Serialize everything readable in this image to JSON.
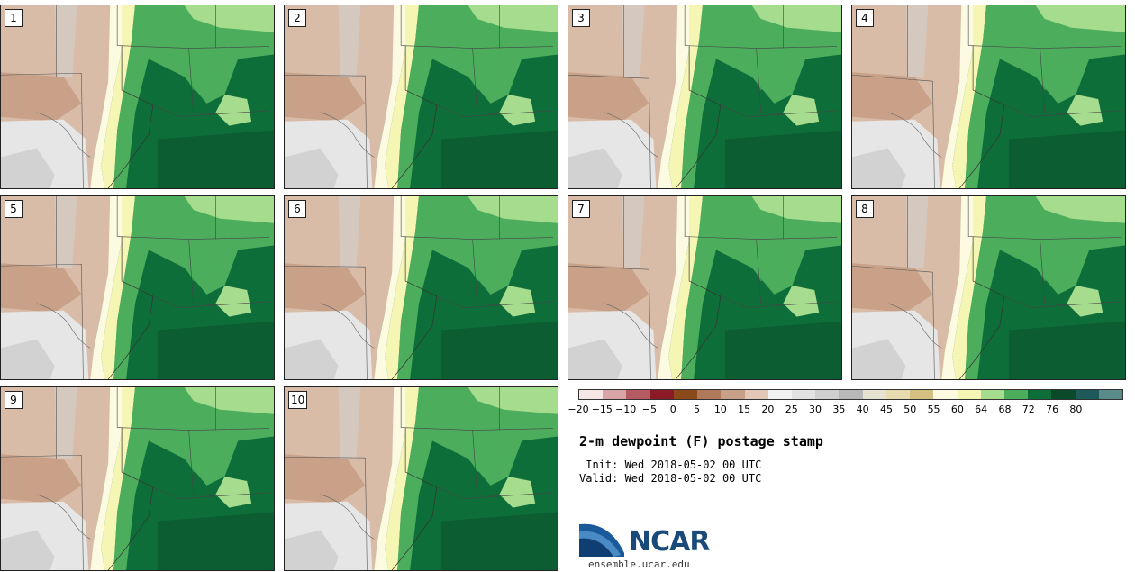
{
  "panels": [
    {
      "label": "1"
    },
    {
      "label": "2"
    },
    {
      "label": "3"
    },
    {
      "label": "4"
    },
    {
      "label": "5"
    },
    {
      "label": "6"
    },
    {
      "label": "7"
    },
    {
      "label": "8"
    },
    {
      "label": "9"
    },
    {
      "label": "10"
    }
  ],
  "colorbar": {
    "ticks": [
      "−20",
      "−15",
      "−10",
      "−5",
      "0",
      "5",
      "10",
      "15",
      "20",
      "25",
      "30",
      "35",
      "40",
      "45",
      "50",
      "55",
      "60",
      "64",
      "68",
      "72",
      "76",
      "80"
    ],
    "colors": [
      "#f6e6e6",
      "#d8a4a6",
      "#b35a62",
      "#8c1a26",
      "#8a4a1a",
      "#b07a5a",
      "#c8a08a",
      "#e2c6b6",
      "#f2f2f2",
      "#e2e2e2",
      "#cfcfcf",
      "#b8b8b8",
      "#e6e2d2",
      "#e6dcb0",
      "#d4c080",
      "#fcfae0",
      "#f6f6b4",
      "#a6dc8e",
      "#4cae5c",
      "#0e6e3a",
      "#0a4a2a",
      "#1e5a5a",
      "#5a8a8a"
    ]
  },
  "title": "2-m dewpoint (F) postage stamp",
  "init_line": " Init: Wed 2018-05-02 00 UTC",
  "valid_line": "Valid: Wed 2018-05-02 00 UTC",
  "logo_text": "NCAR",
  "site": "ensemble.ucar.edu",
  "map_colors": {
    "dry_brown": "#d8bca8",
    "dry_brown_dark": "#c49a80",
    "light_gray": "#e6e6e6",
    "gray": "#d2d2d2",
    "yellow": "#f6f6b4",
    "pale_yellow": "#fcfae0",
    "light_green": "#a6dc8e",
    "green": "#4cae5c",
    "dark_green": "#0e6e3a",
    "darkest_green": "#0a4a2a"
  }
}
